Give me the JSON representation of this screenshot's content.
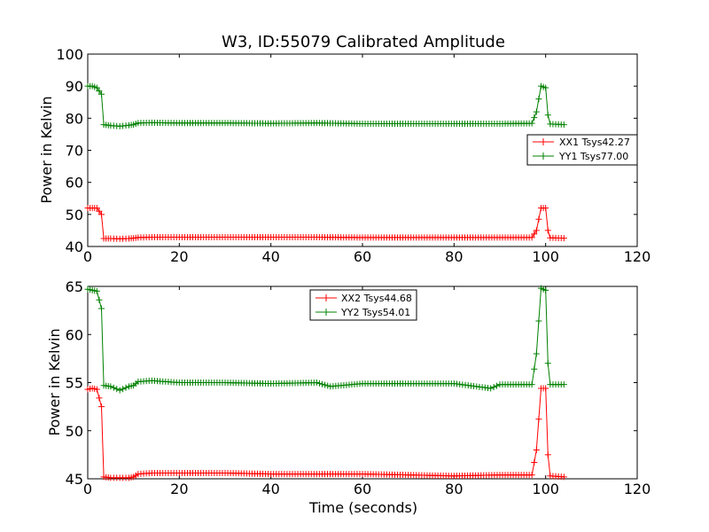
{
  "figure": {
    "title": "W3, ID:55079 Calibrated Amplitude",
    "xlabel": "Time (seconds)"
  },
  "chart_data": [
    {
      "type": "line",
      "title": "W3, ID:55079 Calibrated Amplitude",
      "xlabel": "",
      "ylabel": "Power in Kelvin",
      "xlim": [
        0,
        120
      ],
      "ylim": [
        40,
        100
      ],
      "xticks": [
        "0",
        "20",
        "40",
        "60",
        "80",
        "100",
        "120"
      ],
      "yticks": [
        "40",
        "50",
        "60",
        "70",
        "80",
        "90",
        "100"
      ],
      "legend_position": "center-right",
      "series": [
        {
          "name": "XX1 Tsys42.27",
          "color": "#ff0000",
          "marker": "+",
          "points": [
            [
              0,
              52
            ],
            [
              1,
              52
            ],
            [
              2,
              52
            ],
            [
              3,
              50
            ],
            [
              3.5,
              42.5
            ],
            [
              5,
              42.5
            ],
            [
              7,
              42.4
            ],
            [
              9,
              42.5
            ],
            [
              10,
              42.6
            ],
            [
              11,
              42.8
            ],
            [
              14,
              42.9
            ],
            [
              20,
              42.9
            ],
            [
              30,
              42.9
            ],
            [
              40,
              42.9
            ],
            [
              50,
              42.9
            ],
            [
              60,
              42.8
            ],
            [
              70,
              42.8
            ],
            [
              80,
              42.8
            ],
            [
              90,
              42.8
            ],
            [
              97,
              42.8
            ],
            [
              98,
              45
            ],
            [
              99,
              52
            ],
            [
              100,
              52
            ],
            [
              100.5,
              45
            ],
            [
              101,
              42.7
            ],
            [
              104,
              42.6
            ]
          ]
        },
        {
          "name": "YY1 Tsys77.00",
          "color": "#008000",
          "marker": "+",
          "points": [
            [
              0,
              90
            ],
            [
              1,
              90
            ],
            [
              2,
              89.5
            ],
            [
              3,
              87.5
            ],
            [
              3.5,
              78
            ],
            [
              5,
              77.7
            ],
            [
              7,
              77.5
            ],
            [
              9,
              77.8
            ],
            [
              10,
              78
            ],
            [
              11,
              78.5
            ],
            [
              14,
              78.6
            ],
            [
              20,
              78.5
            ],
            [
              30,
              78.5
            ],
            [
              40,
              78.4
            ],
            [
              50,
              78.5
            ],
            [
              60,
              78.3
            ],
            [
              70,
              78.3
            ],
            [
              80,
              78.3
            ],
            [
              90,
              78.3
            ],
            [
              97,
              78.4
            ],
            [
              98,
              82
            ],
            [
              99,
              90
            ],
            [
              100,
              89.5
            ],
            [
              100.5,
              81
            ],
            [
              101,
              78.2
            ],
            [
              104,
              78
            ]
          ]
        }
      ]
    },
    {
      "type": "line",
      "title": "",
      "xlabel": "Time (seconds)",
      "ylabel": "Power in Kelvin",
      "xlim": [
        0,
        120
      ],
      "ylim": [
        45,
        65
      ],
      "xticks": [
        "0",
        "20",
        "40",
        "60",
        "80",
        "100",
        "120"
      ],
      "yticks": [
        "45",
        "50",
        "55",
        "60",
        "65"
      ],
      "legend_position": "upper-center",
      "series": [
        {
          "name": "XX2 Tsys44.68",
          "color": "#ff0000",
          "marker": "+",
          "points": [
            [
              0,
              54.3
            ],
            [
              1,
              54.4
            ],
            [
              2,
              54.3
            ],
            [
              3,
              52.5
            ],
            [
              3.5,
              45.2
            ],
            [
              5,
              45.1
            ],
            [
              7,
              45.1
            ],
            [
              9,
              45.1
            ],
            [
              10,
              45.2
            ],
            [
              11,
              45.5
            ],
            [
              14,
              45.6
            ],
            [
              20,
              45.6
            ],
            [
              30,
              45.6
            ],
            [
              40,
              45.5
            ],
            [
              50,
              45.5
            ],
            [
              60,
              45.5
            ],
            [
              70,
              45.4
            ],
            [
              80,
              45.3
            ],
            [
              90,
              45.4
            ],
            [
              97,
              45.4
            ],
            [
              98,
              48
            ],
            [
              99,
              54.4
            ],
            [
              100,
              54.4
            ],
            [
              100.5,
              47.5
            ],
            [
              101,
              45.3
            ],
            [
              104,
              45.2
            ]
          ]
        },
        {
          "name": "YY2 Tsys54.01",
          "color": "#008000",
          "marker": "+",
          "points": [
            [
              0,
              64.7
            ],
            [
              1,
              64.6
            ],
            [
              2,
              64.5
            ],
            [
              3,
              62.7
            ],
            [
              3.5,
              54.7
            ],
            [
              5,
              54.6
            ],
            [
              7,
              54.2
            ],
            [
              9,
              54.6
            ],
            [
              10,
              54.7
            ],
            [
              11,
              55.1
            ],
            [
              14,
              55.2
            ],
            [
              20,
              55.0
            ],
            [
              30,
              55.0
            ],
            [
              40,
              54.9
            ],
            [
              50,
              55.0
            ],
            [
              53,
              54.6
            ],
            [
              60,
              54.9
            ],
            [
              70,
              54.9
            ],
            [
              80,
              54.9
            ],
            [
              88,
              54.4
            ],
            [
              90,
              54.8
            ],
            [
              97,
              54.8
            ],
            [
              98,
              58
            ],
            [
              99,
              64.8
            ],
            [
              100,
              64.6
            ],
            [
              100.5,
              57
            ],
            [
              101,
              54.8
            ],
            [
              104,
              54.8
            ]
          ]
        }
      ]
    }
  ]
}
